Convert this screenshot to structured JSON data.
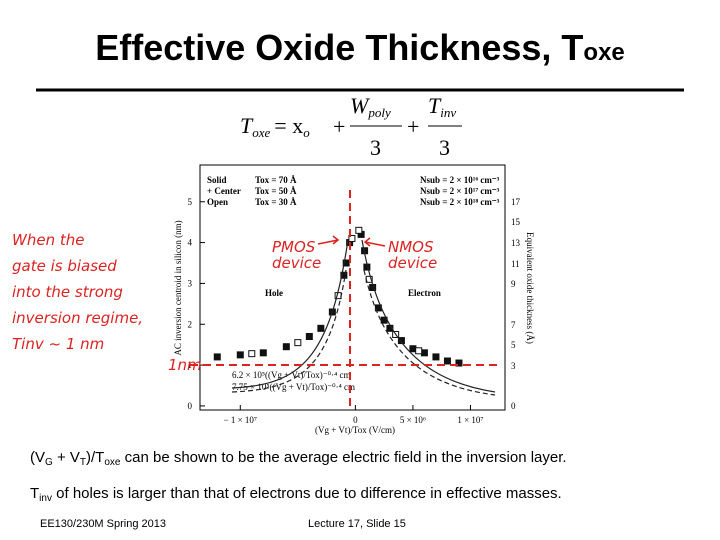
{
  "header": {
    "title": "Effective Oxide Thickness, T",
    "title_sub": "oxe"
  },
  "formula": {
    "lhs": "T",
    "lhs_sub": "oxe",
    "eq": "= x",
    "eq_sub": "o",
    "plus1": "+",
    "w": "W",
    "w_sub": "poly",
    "den1": "3",
    "plus2": "+",
    "t": "T",
    "t_sub": "inv",
    "den2": "3"
  },
  "annotations": {
    "left": [
      "When the",
      "gate is biased",
      "into the strong",
      "inversion regime,",
      "Tinv ~ 1 nm"
    ],
    "pmos": [
      "PMOS",
      "device"
    ],
    "nmos": [
      "NMOS",
      "device"
    ],
    "one_nm": "1nm"
  },
  "chart_data": {
    "type": "scatter",
    "xlabel": "(Vg + Vt)/Tox (V/cm)",
    "ylabel": "AC inversion centroid in silicon (nm)",
    "y2label": "Equivalent oxide thickness (Å)",
    "xlim": [
      -13500000,
      13000000
    ],
    "ylim": [
      -0.1,
      5.9
    ],
    "xticks": [
      {
        "value": -10000000,
        "label": "− 1 × 10⁷"
      },
      {
        "value": 0,
        "label": "0"
      },
      {
        "value": 5000000,
        "label": "5 × 10⁶"
      },
      {
        "value": 10000000,
        "label": "1 × 10⁷"
      }
    ],
    "yticks": [
      0,
      1,
      2,
      3,
      4,
      5
    ],
    "y2_tick_labels": [
      "17",
      "15",
      "13",
      "11",
      "9",
      "7",
      "5",
      "3",
      "0"
    ],
    "legend_left": [
      "Solid",
      "+ Center",
      "Open"
    ],
    "legend_tox": [
      "Tox = 70 Å",
      "Tox = 50 Å",
      "Tox = 30 Å"
    ],
    "legend_right": [
      "Nsub = 2 × 10¹⁶ cm⁻³",
      "Nsub = 2 × 10¹⁷ cm⁻³",
      "Nsub = 2 × 10¹⁸ cm⁻³"
    ],
    "curve_legend": [
      "6.2 × 10⁵((Vg + Vt)/Tox)⁻⁰·⁴ cm",
      "7.75 × 10⁵((Vg + Vt)/Tox)⁻⁰·⁴ cm"
    ],
    "labels": {
      "hole": "Hole",
      "electron": "Electron"
    },
    "series": [
      {
        "name": "Solid",
        "color": "#111111",
        "x": [
          500000,
          1000000,
          2000000,
          3000000,
          5000000,
          7000000,
          9000000,
          -500000,
          -1000000,
          -3000000,
          -6000000,
          -10000000,
          -12000000
        ],
        "y": [
          4.2,
          3.4,
          2.4,
          1.9,
          1.4,
          1.2,
          1.05,
          4.0,
          3.2,
          1.9,
          1.45,
          1.25,
          1.2
        ]
      },
      {
        "name": "+ Center",
        "color": "#111111",
        "x": [
          800000,
          1500000,
          2500000,
          4000000,
          6000000,
          8000000,
          -800000,
          -2000000,
          -4000000,
          -8000000
        ],
        "y": [
          3.8,
          2.9,
          2.1,
          1.6,
          1.3,
          1.1,
          3.5,
          2.3,
          1.7,
          1.3
        ]
      },
      {
        "name": "Open",
        "color": "#111111",
        "x": [
          300000,
          1200000,
          3500000,
          5500000,
          -300000,
          -1500000,
          -5000000,
          -9000000
        ],
        "y": [
          4.3,
          3.1,
          1.75,
          1.35,
          4.1,
          2.7,
          1.55,
          1.28
        ]
      }
    ]
  },
  "bullets": [
    {
      "a": "(V",
      "a_sub": "G",
      "b": " + V",
      "b_sub": "T",
      "c": ")/T",
      "c_sub": "oxe",
      "d": " can be shown to be the average electric field in the inversion layer."
    },
    {
      "a": "T",
      "a_sub": "inv",
      "d": " of holes is larger than that of electrons due to difference in effective masses."
    }
  ],
  "footer": {
    "left": "EE130/230M Spring 2013",
    "right": "Lecture 17, Slide 15"
  }
}
